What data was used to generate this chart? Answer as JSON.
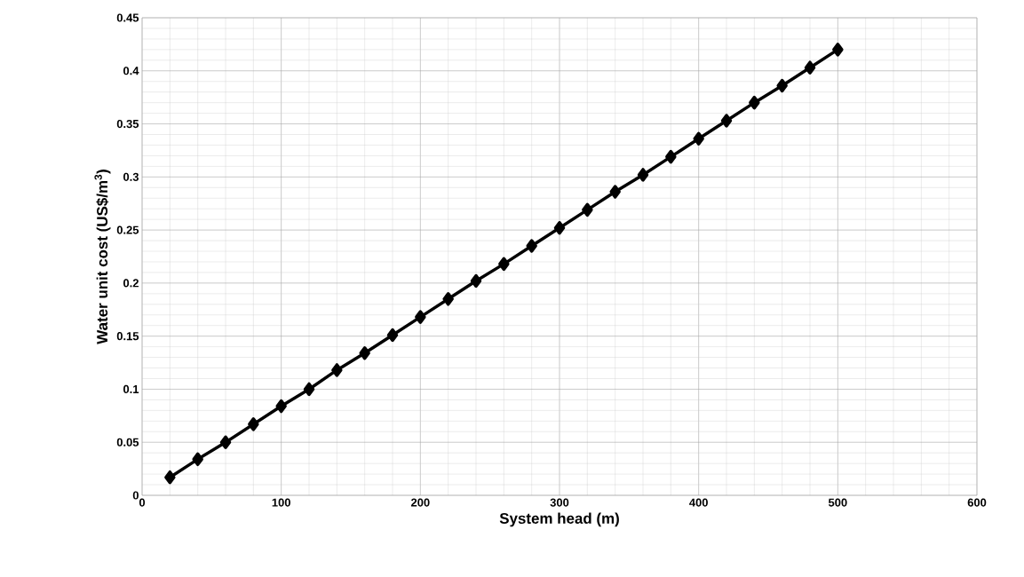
{
  "chart_data": {
    "type": "line",
    "xlabel": "System head (m)",
    "ylabel": "Water unit cost (US$/m$^{3}$)",
    "x": [
      20,
      40,
      60,
      80,
      100,
      120,
      140,
      160,
      180,
      200,
      220,
      240,
      260,
      280,
      300,
      320,
      340,
      360,
      380,
      400,
      420,
      440,
      460,
      480,
      500
    ],
    "series": [
      {
        "color": "#000000",
        "values": [
          0.017,
          0.034,
          0.05,
          0.067,
          0.084,
          0.1,
          0.118,
          0.134,
          0.151,
          0.168,
          0.185,
          0.202,
          0.218,
          0.235,
          0.252,
          0.269,
          0.286,
          0.302,
          0.319,
          0.336,
          0.353,
          0.37,
          0.386,
          0.403,
          0.42
        ]
      }
    ],
    "xlim": [
      0,
      600
    ],
    "xticks": [
      0,
      100,
      200,
      300,
      400,
      500,
      600
    ],
    "ylim": [
      0,
      0.45
    ],
    "yticks": [
      0,
      {
        "value": 0.05,
        "label": "0.05"
      },
      {
        "value": 0.1,
        "label": "0.1"
      },
      {
        "value": 0.15,
        "label": "0.15"
      },
      {
        "value": 0.2,
        "label": "0.2"
      },
      {
        "value": 0.25,
        "label": "0.25"
      },
      {
        "value": 0.3,
        "label": "0.3"
      },
      {
        "value": 0.35,
        "label": "0.35"
      },
      {
        "value": 0.4,
        "label": "0.4"
      },
      {
        "value": 0.45,
        "label": "0.45"
      }
    ],
    "grid": true,
    "marker": "diamond",
    "line_style": "solid"
  }
}
